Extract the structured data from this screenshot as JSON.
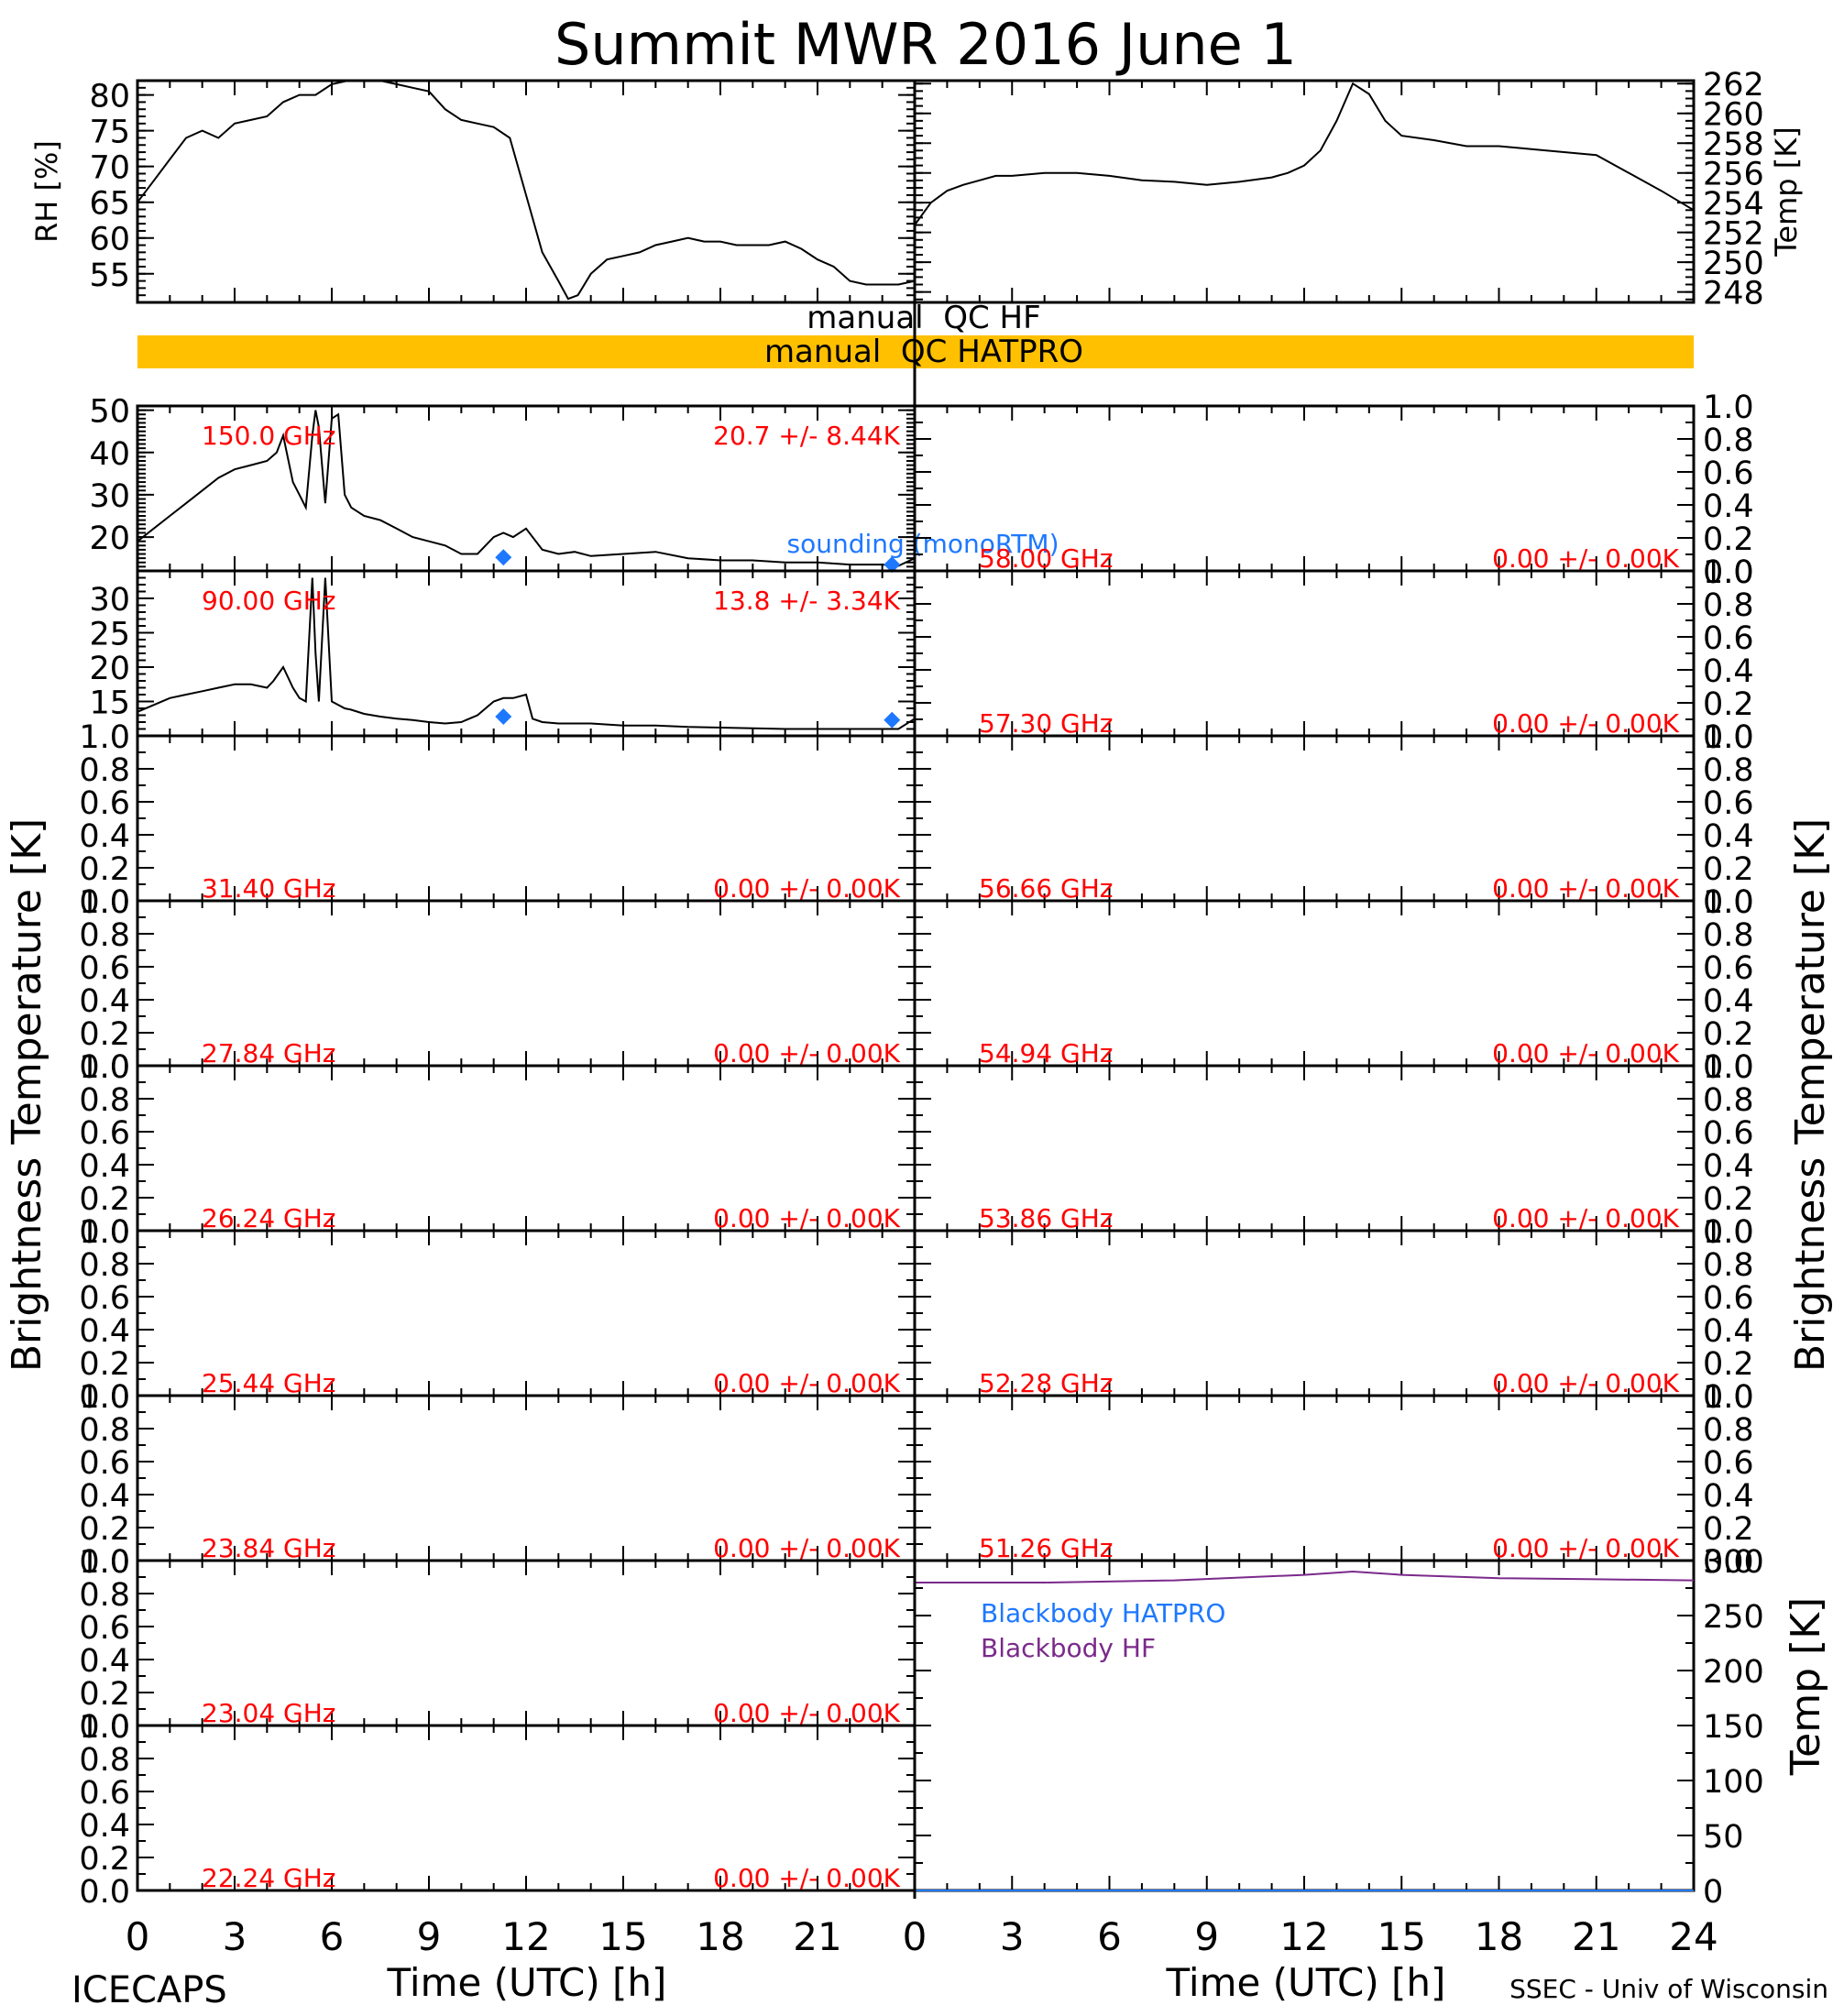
{
  "figure": {
    "title": "Summit MWR 2016 June  1",
    "footer_left": "ICECAPS",
    "footer_right": "SSEC - Univ of Wisconsin",
    "xlabel": "Time (UTC) [h]",
    "left_ylabel": "Brightness Temperature [K]",
    "right_ylabel": "Brightness Temperature [K]",
    "qc": {
      "hf_label": "manual  QC HF",
      "hatpro_label": "manual  QC HATPRO",
      "hatpro_color": "#FFC000"
    },
    "colors": {
      "channel_text": "#FF0000",
      "sounding": "#1E78FF",
      "bb_hatpro": "#1E78FF",
      "bb_hf": "#7B2A8B"
    }
  },
  "chart_data": [
    {
      "id": "rh",
      "type": "line",
      "ylabel": "RH [%]",
      "xlim": [
        0,
        24
      ],
      "ylim": [
        51,
        82
      ],
      "yticks": [
        55,
        60,
        65,
        70,
        75,
        80
      ],
      "x": [
        0,
        0.5,
        1,
        1.5,
        2,
        2.5,
        3,
        3.5,
        4,
        4.5,
        5,
        5.5,
        6,
        6.5,
        7,
        7.5,
        8,
        8.5,
        9,
        9.5,
        10,
        10.5,
        11,
        11.5,
        12,
        12.5,
        13,
        13.3,
        13.6,
        14,
        14.5,
        15,
        15.5,
        16,
        16.5,
        17,
        17.5,
        18,
        18.5,
        19,
        19.5,
        20,
        20.5,
        21,
        21.5,
        22,
        22.5,
        23,
        23.5,
        24
      ],
      "values": [
        65,
        68,
        71,
        74,
        75,
        74,
        76,
        76.5,
        77,
        79,
        80,
        80,
        81.5,
        82,
        82,
        82,
        81.5,
        81,
        80.5,
        78,
        76.5,
        76,
        75.5,
        74,
        66,
        58,
        54,
        51.5,
        52,
        55,
        57,
        57.5,
        58,
        59,
        59.5,
        60,
        59.5,
        59.5,
        59,
        59,
        59,
        59.5,
        58.5,
        57,
        56,
        54,
        53.5,
        53.5,
        53.5,
        54
      ]
    },
    {
      "id": "temp",
      "type": "line",
      "ylabel": "Temp [K]",
      "xlim": [
        0,
        24
      ],
      "ylim": [
        247.3,
        262.2
      ],
      "yticks": [
        248,
        250,
        252,
        254,
        256,
        258,
        260,
        262
      ],
      "x": [
        0,
        0.5,
        1,
        1.5,
        2,
        2.5,
        3,
        4,
        5,
        6,
        7,
        8,
        9,
        10,
        11,
        11.5,
        12,
        12.5,
        13,
        13.5,
        14,
        14.5,
        15,
        16,
        17,
        18,
        19,
        20,
        21,
        22,
        23,
        24
      ],
      "values": [
        252.5,
        254,
        254.8,
        255.2,
        255.5,
        255.8,
        255.8,
        256,
        256,
        255.8,
        255.5,
        255.4,
        255.2,
        255.4,
        255.7,
        256,
        256.5,
        257.5,
        259.5,
        262,
        261.3,
        259.5,
        258.5,
        258.2,
        257.8,
        257.8,
        257.6,
        257.4,
        257.2,
        256,
        254.8,
        253.5
      ]
    },
    {
      "id": "ch-150",
      "type": "line",
      "channel": "150.0 GHz",
      "stats": "20.7 +/-  8.44K",
      "ylim": [
        12,
        51
      ],
      "yticks": [
        20,
        30,
        40,
        50
      ],
      "x": [
        0,
        0.5,
        1,
        1.5,
        2,
        2.5,
        3,
        3.5,
        4,
        4.3,
        4.5,
        4.8,
        5,
        5.2,
        5.4,
        5.5,
        5.6,
        5.8,
        6,
        6.2,
        6.4,
        6.6,
        7,
        7.5,
        8,
        8.5,
        9,
        9.5,
        10,
        10.5,
        11,
        11.3,
        11.6,
        12,
        12.5,
        13,
        13.5,
        14,
        15,
        16,
        17,
        18,
        19,
        20,
        21,
        22,
        23,
        23.5,
        24
      ],
      "values": [
        19,
        22,
        25,
        28,
        31,
        34,
        36,
        37,
        38,
        40,
        44,
        33,
        30,
        27,
        44,
        50,
        46,
        28,
        48,
        49,
        30,
        27,
        25,
        24,
        22,
        20,
        19,
        18,
        16,
        16,
        20,
        21,
        20,
        22,
        17,
        16,
        16.5,
        15.5,
        16,
        16.5,
        15,
        14.5,
        14.5,
        14,
        14,
        13.5,
        13.5,
        13.2,
        15
      ],
      "sounding": [
        {
          "x": 11.3,
          "y": 15.2
        },
        {
          "x": 23.3,
          "y": 13.5
        }
      ],
      "sounding_label": "sounding (monoRTM)"
    },
    {
      "id": "ch-58",
      "type": "line",
      "channel": "58.00 GHz",
      "stats": "0.00 +/-  0.00K",
      "ylim": [
        0,
        1
      ],
      "yticks": [
        0,
        0.2,
        0.4,
        0.6,
        0.8,
        1.0
      ]
    },
    {
      "id": "ch-90",
      "type": "line",
      "channel": "90.00 GHz",
      "stats": "13.8 +/-  3.34K",
      "ylim": [
        10,
        34
      ],
      "yticks": [
        15,
        20,
        25,
        30
      ],
      "x": [
        0,
        0.5,
        1,
        1.5,
        2,
        2.5,
        3,
        3.5,
        4,
        4.2,
        4.5,
        4.8,
        5,
        5.2,
        5.4,
        5.5,
        5.6,
        5.8,
        6,
        6.2,
        6.4,
        6.6,
        7,
        7.5,
        8,
        8.5,
        9,
        9.5,
        10,
        10.5,
        11,
        11.3,
        11.6,
        12,
        12.2,
        12.5,
        13,
        14,
        15,
        16,
        17,
        18,
        19,
        20,
        21,
        22,
        23,
        23.5,
        24
      ],
      "values": [
        13.5,
        14.5,
        15.5,
        16,
        16.5,
        17,
        17.5,
        17.5,
        17,
        18,
        20,
        17,
        15.5,
        15,
        33,
        22,
        15,
        33,
        15,
        14.5,
        14,
        13.8,
        13.2,
        12.8,
        12.5,
        12.3,
        12,
        11.8,
        12,
        13,
        15,
        15.5,
        15.5,
        16,
        12.5,
        12,
        11.8,
        11.8,
        11.5,
        11.5,
        11.3,
        11.2,
        11.1,
        11,
        11,
        11,
        11,
        11,
        12.5
      ],
      "sounding": [
        {
          "x": 11.3,
          "y": 12.8
        },
        {
          "x": 23.3,
          "y": 12.3
        }
      ]
    },
    {
      "id": "ch-57-30",
      "type": "line",
      "channel": "57.30 GHz",
      "stats": "0.00 +/-  0.00K",
      "ylim": [
        0,
        1
      ],
      "yticks": [
        0,
        0.2,
        0.4,
        0.6,
        0.8,
        1.0
      ]
    },
    {
      "id": "ch-31-40",
      "type": "line",
      "channel": "31.40 GHz",
      "stats": "0.00 +/-  0.00K",
      "ylim": [
        0,
        1
      ],
      "yticks": [
        0,
        0.2,
        0.4,
        0.6,
        0.8,
        1.0
      ]
    },
    {
      "id": "ch-56-66",
      "type": "line",
      "channel": "56.66 GHz",
      "stats": "0.00 +/-  0.00K",
      "ylim": [
        0,
        1
      ],
      "yticks": [
        0,
        0.2,
        0.4,
        0.6,
        0.8,
        1.0
      ]
    },
    {
      "id": "ch-27-84",
      "type": "line",
      "channel": "27.84 GHz",
      "stats": "0.00 +/-  0.00K",
      "ylim": [
        0,
        1
      ],
      "yticks": [
        0,
        0.2,
        0.4,
        0.6,
        0.8,
        1.0
      ]
    },
    {
      "id": "ch-54-94",
      "type": "line",
      "channel": "54.94 GHz",
      "stats": "0.00 +/-  0.00K",
      "ylim": [
        0,
        1
      ],
      "yticks": [
        0,
        0.2,
        0.4,
        0.6,
        0.8,
        1.0
      ]
    },
    {
      "id": "ch-26-24",
      "type": "line",
      "channel": "26.24 GHz",
      "stats": "0.00 +/-  0.00K",
      "ylim": [
        0,
        1
      ],
      "yticks": [
        0,
        0.2,
        0.4,
        0.6,
        0.8,
        1.0
      ]
    },
    {
      "id": "ch-53-86",
      "type": "line",
      "channel": "53.86 GHz",
      "stats": "0.00 +/-  0.00K",
      "ylim": [
        0,
        1
      ],
      "yticks": [
        0,
        0.2,
        0.4,
        0.6,
        0.8,
        1.0
      ]
    },
    {
      "id": "ch-25-44",
      "type": "line",
      "channel": "25.44 GHz",
      "stats": "0.00 +/-  0.00K",
      "ylim": [
        0,
        1
      ],
      "yticks": [
        0,
        0.2,
        0.4,
        0.6,
        0.8,
        1.0
      ]
    },
    {
      "id": "ch-52-28",
      "type": "line",
      "channel": "52.28 GHz",
      "stats": "0.00 +/-  0.00K",
      "ylim": [
        0,
        1
      ],
      "yticks": [
        0,
        0.2,
        0.4,
        0.6,
        0.8,
        1.0
      ]
    },
    {
      "id": "ch-23-84",
      "type": "line",
      "channel": "23.84 GHz",
      "stats": "0.00 +/-  0.00K",
      "ylim": [
        0,
        1
      ],
      "yticks": [
        0,
        0.2,
        0.4,
        0.6,
        0.8,
        1.0
      ]
    },
    {
      "id": "ch-51-26",
      "type": "line",
      "channel": "51.26 GHz",
      "stats": "0.00 +/-  0.00K",
      "ylim": [
        0,
        1
      ],
      "yticks": [
        0,
        0.2,
        0.4,
        0.6,
        0.8,
        1.0
      ]
    },
    {
      "id": "ch-23-04",
      "type": "line",
      "channel": "23.04 GHz",
      "stats": "0.00 +/-  0.00K",
      "ylim": [
        0,
        1
      ],
      "yticks": [
        0,
        0.2,
        0.4,
        0.6,
        0.8,
        1.0
      ]
    },
    {
      "id": "ch-22-24",
      "type": "line",
      "channel": "22.24 GHz",
      "stats": "0.00 +/-  0.00K",
      "ylim": [
        0,
        1
      ],
      "yticks": [
        0,
        0.2,
        0.4,
        0.6,
        0.8,
        1.0
      ]
    },
    {
      "id": "blackbody",
      "type": "line",
      "ylabel": "Temp [K]",
      "ylim": [
        0,
        300
      ],
      "yticks": [
        0,
        50,
        100,
        150,
        200,
        250,
        300
      ],
      "series": [
        {
          "name": "Blackbody HATPRO",
          "x": [
            0,
            24
          ],
          "values": [
            0,
            0
          ]
        },
        {
          "name": "Blackbody HF",
          "x": [
            0,
            4,
            8,
            12,
            13.5,
            15,
            18,
            21,
            24
          ],
          "values": [
            280,
            280,
            282,
            287,
            290,
            287,
            284,
            283,
            282
          ]
        }
      ]
    }
  ],
  "xaxis": {
    "xlim": [
      0,
      24
    ],
    "xticks": [
      0,
      3,
      6,
      9,
      12,
      15,
      18,
      21
    ],
    "xticks_right": [
      0,
      3,
      6,
      9,
      12,
      15,
      18,
      21,
      24
    ]
  }
}
